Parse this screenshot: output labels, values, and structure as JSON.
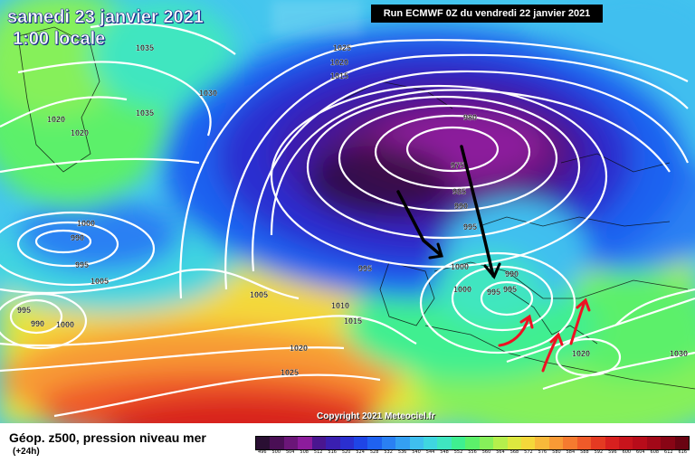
{
  "header": {
    "date": "samedi 23 janvier 2021",
    "time": "1:00 locale",
    "run": "Run ECMWF 0Z du vendredi 22 janvier 2021"
  },
  "copyright": "Copyright 2021 Meteociel.fr",
  "legend": {
    "title": "Géop. z500, pression niveau mer",
    "subtitle": "(+24h)",
    "scale_values": [
      "496",
      "500",
      "504",
      "508",
      "512",
      "516",
      "520",
      "524",
      "528",
      "532",
      "536",
      "540",
      "544",
      "548",
      "552",
      "556",
      "560",
      "564",
      "568",
      "572",
      "576",
      "580",
      "584",
      "588",
      "592",
      "596",
      "600",
      "604",
      "608",
      "612",
      "616"
    ],
    "scale_colors": [
      "#2a0f33",
      "#4a0f55",
      "#6b1678",
      "#8c1c9c",
      "#4a1690",
      "#3a1fb0",
      "#2b2fd0",
      "#1f45e6",
      "#1f62f0",
      "#2a80f3",
      "#34a0f2",
      "#3fbfef",
      "#3fd6e0",
      "#3fe6c0",
      "#3fef90",
      "#5cf06a",
      "#86f05a",
      "#b5ef4c",
      "#dde83f",
      "#f4d83a",
      "#f8b93a",
      "#f89a35",
      "#f57a2f",
      "#ef5a29",
      "#e43a22",
      "#d8201f",
      "#c8141c",
      "#b80c1a",
      "#a20818",
      "#880515",
      "#6a0312"
    ]
  },
  "isobar_labels": [
    "1035",
    "1030",
    "1025",
    "1020",
    "1015",
    "1035",
    "1020",
    "1020",
    "980",
    "975",
    "985",
    "990",
    "995",
    "995",
    "1000",
    "1000",
    "990",
    "995",
    "1005",
    "1005",
    "995",
    "990",
    "1000",
    "1010",
    "1015",
    "1020",
    "1025",
    "1000",
    "1005",
    "995",
    "990",
    "995",
    "1020",
    "1030"
  ],
  "map_colors": {
    "arrow_black": "#000000",
    "arrow_red": "#ee1122",
    "isobar": "#ffffff"
  }
}
